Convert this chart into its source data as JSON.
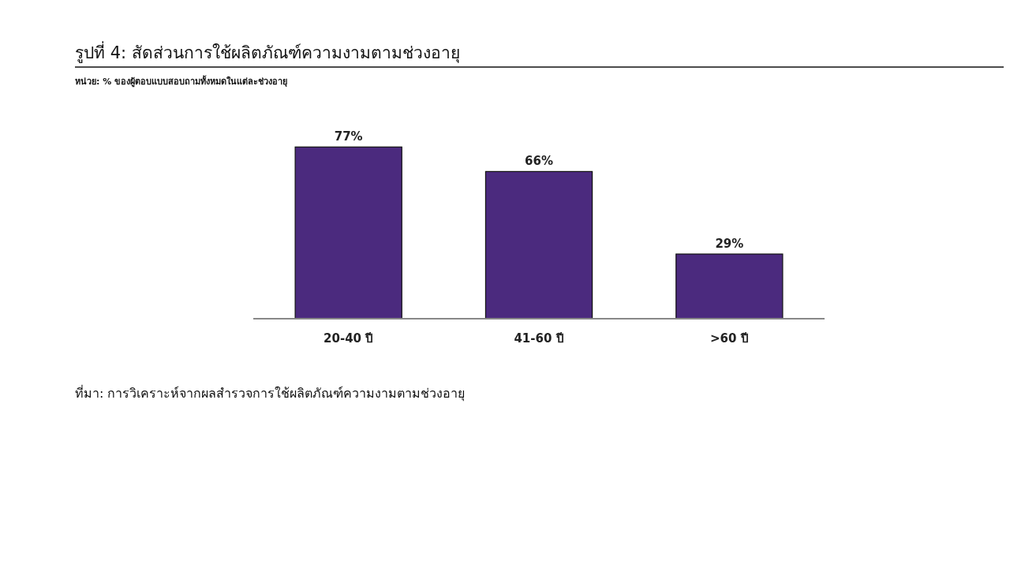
{
  "chart_data": {
    "type": "bar",
    "title": "รูปที่ 4: สัดส่วนการใช้ผลิตภัณฑ์ความงามตามช่วงอายุ",
    "subtitle": "หน่วย: % ของผู้ตอบแบบสอบถามทั้งหมดในแต่ละช่วงอายุ",
    "categories": [
      "20-40 ปี",
      "41-60 ปี",
      ">60 ปี"
    ],
    "values": [
      77,
      66,
      29
    ],
    "value_labels": [
      "77%",
      "66%",
      "29%"
    ],
    "color": "#4b2a7e",
    "annotations": [
      "ที่มา: การวิเคราะห์จากผลสำรวจการใช้ผลิตภัณฑ์ความงามตามช่วงอายุ"
    ]
  }
}
